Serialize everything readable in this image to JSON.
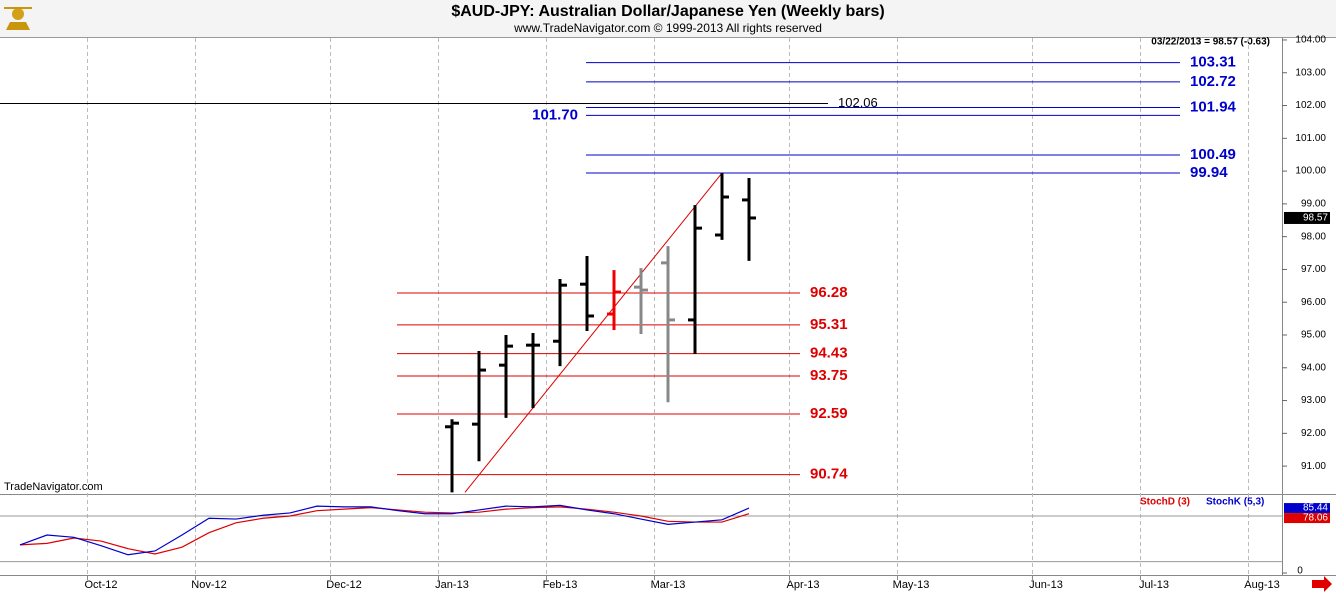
{
  "chart_data": [
    {
      "type": "ohlc",
      "title": "$AUD-JPY:  Australian Dollar/Japanese Yen  (Weekly bars)",
      "subtitle": "www.TradeNavigator.com © 1999-2013 All rights reserved",
      "last_quote": "03/22/2013 = 98.57 (-0.63)",
      "watermark": "TradeNavigator.com",
      "categories": [
        null,
        null,
        null,
        "Oct-12",
        null,
        null,
        null,
        "Nov-12",
        null,
        null,
        null,
        null,
        "Dec-12",
        null,
        null,
        null,
        "Jan-13",
        null,
        null,
        null,
        "Feb-13",
        null,
        null,
        null,
        "Mar-13",
        null,
        null,
        null,
        null,
        "Apr-13",
        null,
        null,
        null,
        "May-13",
        null,
        null,
        null,
        null,
        "Jun-13",
        null,
        null,
        null,
        "Jul-13",
        null,
        null,
        null,
        "Aug-13"
      ],
      "open": [
        null,
        null,
        null,
        null,
        null,
        null,
        null,
        null,
        null,
        null,
        null,
        null,
        null,
        null,
        null,
        null,
        92.2,
        92.28,
        94.08,
        94.69,
        94.81,
        96.55,
        95.64,
        96.46,
        97.2,
        95.46,
        98.05,
        99.12,
        null,
        null,
        null,
        null,
        null,
        null,
        null,
        null,
        null,
        null,
        null,
        null,
        null,
        null,
        null,
        null,
        null,
        null,
        null
      ],
      "high": [
        null,
        null,
        null,
        null,
        null,
        null,
        null,
        null,
        null,
        null,
        null,
        null,
        null,
        null,
        null,
        null,
        92.43,
        94.51,
        95.0,
        95.06,
        96.71,
        97.41,
        96.98,
        97.04,
        97.71,
        98.96,
        99.94,
        99.79,
        null,
        null,
        null,
        null,
        null,
        null,
        null,
        null,
        null,
        null,
        null,
        null,
        null,
        null,
        null,
        null,
        null,
        null,
        null
      ],
      "low": [
        null,
        null,
        null,
        null,
        null,
        null,
        null,
        null,
        null,
        null,
        null,
        null,
        null,
        null,
        null,
        null,
        90.2,
        91.15,
        92.47,
        92.77,
        94.05,
        95.12,
        95.15,
        95.03,
        92.95,
        94.42,
        97.9,
        97.26,
        null,
        null,
        null,
        null,
        null,
        null,
        null,
        null,
        null,
        null,
        null,
        null,
        null,
        null,
        null,
        null,
        null,
        null,
        null
      ],
      "close": [
        null,
        null,
        null,
        null,
        null,
        null,
        null,
        null,
        null,
        null,
        null,
        null,
        null,
        null,
        null,
        null,
        92.31,
        93.93,
        94.66,
        94.69,
        96.52,
        95.58,
        96.31,
        96.37,
        95.46,
        98.26,
        99.21,
        98.57,
        null,
        null,
        null,
        null,
        null,
        null,
        null,
        null,
        null,
        null,
        null,
        null,
        null,
        null,
        null,
        null,
        null,
        null,
        null
      ],
      "bar_colors": [
        null,
        null,
        null,
        null,
        null,
        null,
        null,
        null,
        null,
        null,
        null,
        null,
        null,
        null,
        null,
        null,
        "#000000",
        "#000000",
        "#000000",
        "#000000",
        "#000000",
        "#000000",
        "#ee0000",
        "#888888",
        "#888888",
        "#000000",
        "#000000",
        "#000000",
        null,
        null,
        null,
        null,
        null,
        null,
        null,
        null,
        null,
        null,
        null,
        null,
        null,
        null,
        null,
        null,
        null,
        null,
        null
      ],
      "ylim": [
        90.18,
        104.06
      ],
      "yticks": [
        {
          "value": 91,
          "label": "91.00"
        },
        {
          "value": 92,
          "label": "92.00"
        },
        {
          "value": 93,
          "label": "93.00"
        },
        {
          "value": 94,
          "label": "94.00"
        },
        {
          "value": 95,
          "label": "95.00"
        },
        {
          "value": 96,
          "label": "96.00"
        },
        {
          "value": 97,
          "label": "97.00"
        },
        {
          "value": 98,
          "label": "98.00"
        },
        {
          "value": 99,
          "label": "99.00"
        },
        {
          "value": 100,
          "label": "100.00"
        },
        {
          "value": 101,
          "label": "101.00"
        },
        {
          "value": 102,
          "label": "102.00"
        },
        {
          "value": 103,
          "label": "103.00"
        },
        {
          "value": 104,
          "label": "104.00"
        }
      ],
      "levels": [
        {
          "color": "#0000cc",
          "label_position": "right",
          "values": [
            103.31,
            102.72,
            101.94,
            100.49,
            99.94
          ]
        },
        {
          "color": "#0000cc",
          "label_position": "left",
          "values": [
            101.7
          ],
          "value_labels": [
            "101.70"
          ]
        },
        {
          "color": "#000000",
          "label_position": "right",
          "values": [
            102.06
          ]
        },
        {
          "color": "#dd0000",
          "label_position": "right",
          "values": [
            96.28,
            95.31,
            94.43,
            93.75,
            92.59,
            90.74
          ]
        }
      ],
      "trendline_color": "#dd0000"
    },
    {
      "type": "line",
      "ylim": [
        0,
        100
      ],
      "yticks": [
        0
      ],
      "ref_lines": [
        75,
        15
      ],
      "series": [
        {
          "name": "StochD (3)",
          "color": "#dd0000",
          "values": [
            37,
            39,
            46,
            42,
            32,
            25,
            34,
            53,
            66,
            72,
            75,
            82,
            84,
            86,
            83,
            80,
            79,
            80,
            84,
            86,
            87,
            84,
            80,
            75,
            68,
            67,
            67,
            78.06,
            null,
            null,
            null,
            null,
            null,
            null,
            null,
            null,
            null,
            null,
            null,
            null,
            null,
            null,
            null,
            null,
            null,
            null,
            null
          ]
        },
        {
          "name": "StochK (5,3)",
          "color": "#0000cc",
          "values": [
            37,
            50,
            47,
            36,
            24,
            29,
            50,
            72,
            71,
            76,
            79,
            88,
            87,
            87,
            82,
            78,
            78,
            83,
            88,
            87,
            89,
            83,
            78,
            71,
            64,
            67,
            70,
            85.44,
            null,
            null,
            null,
            null,
            null,
            null,
            null,
            null,
            null,
            null,
            null,
            null,
            null,
            null,
            null,
            null,
            null,
            null,
            null
          ]
        }
      ]
    }
  ]
}
